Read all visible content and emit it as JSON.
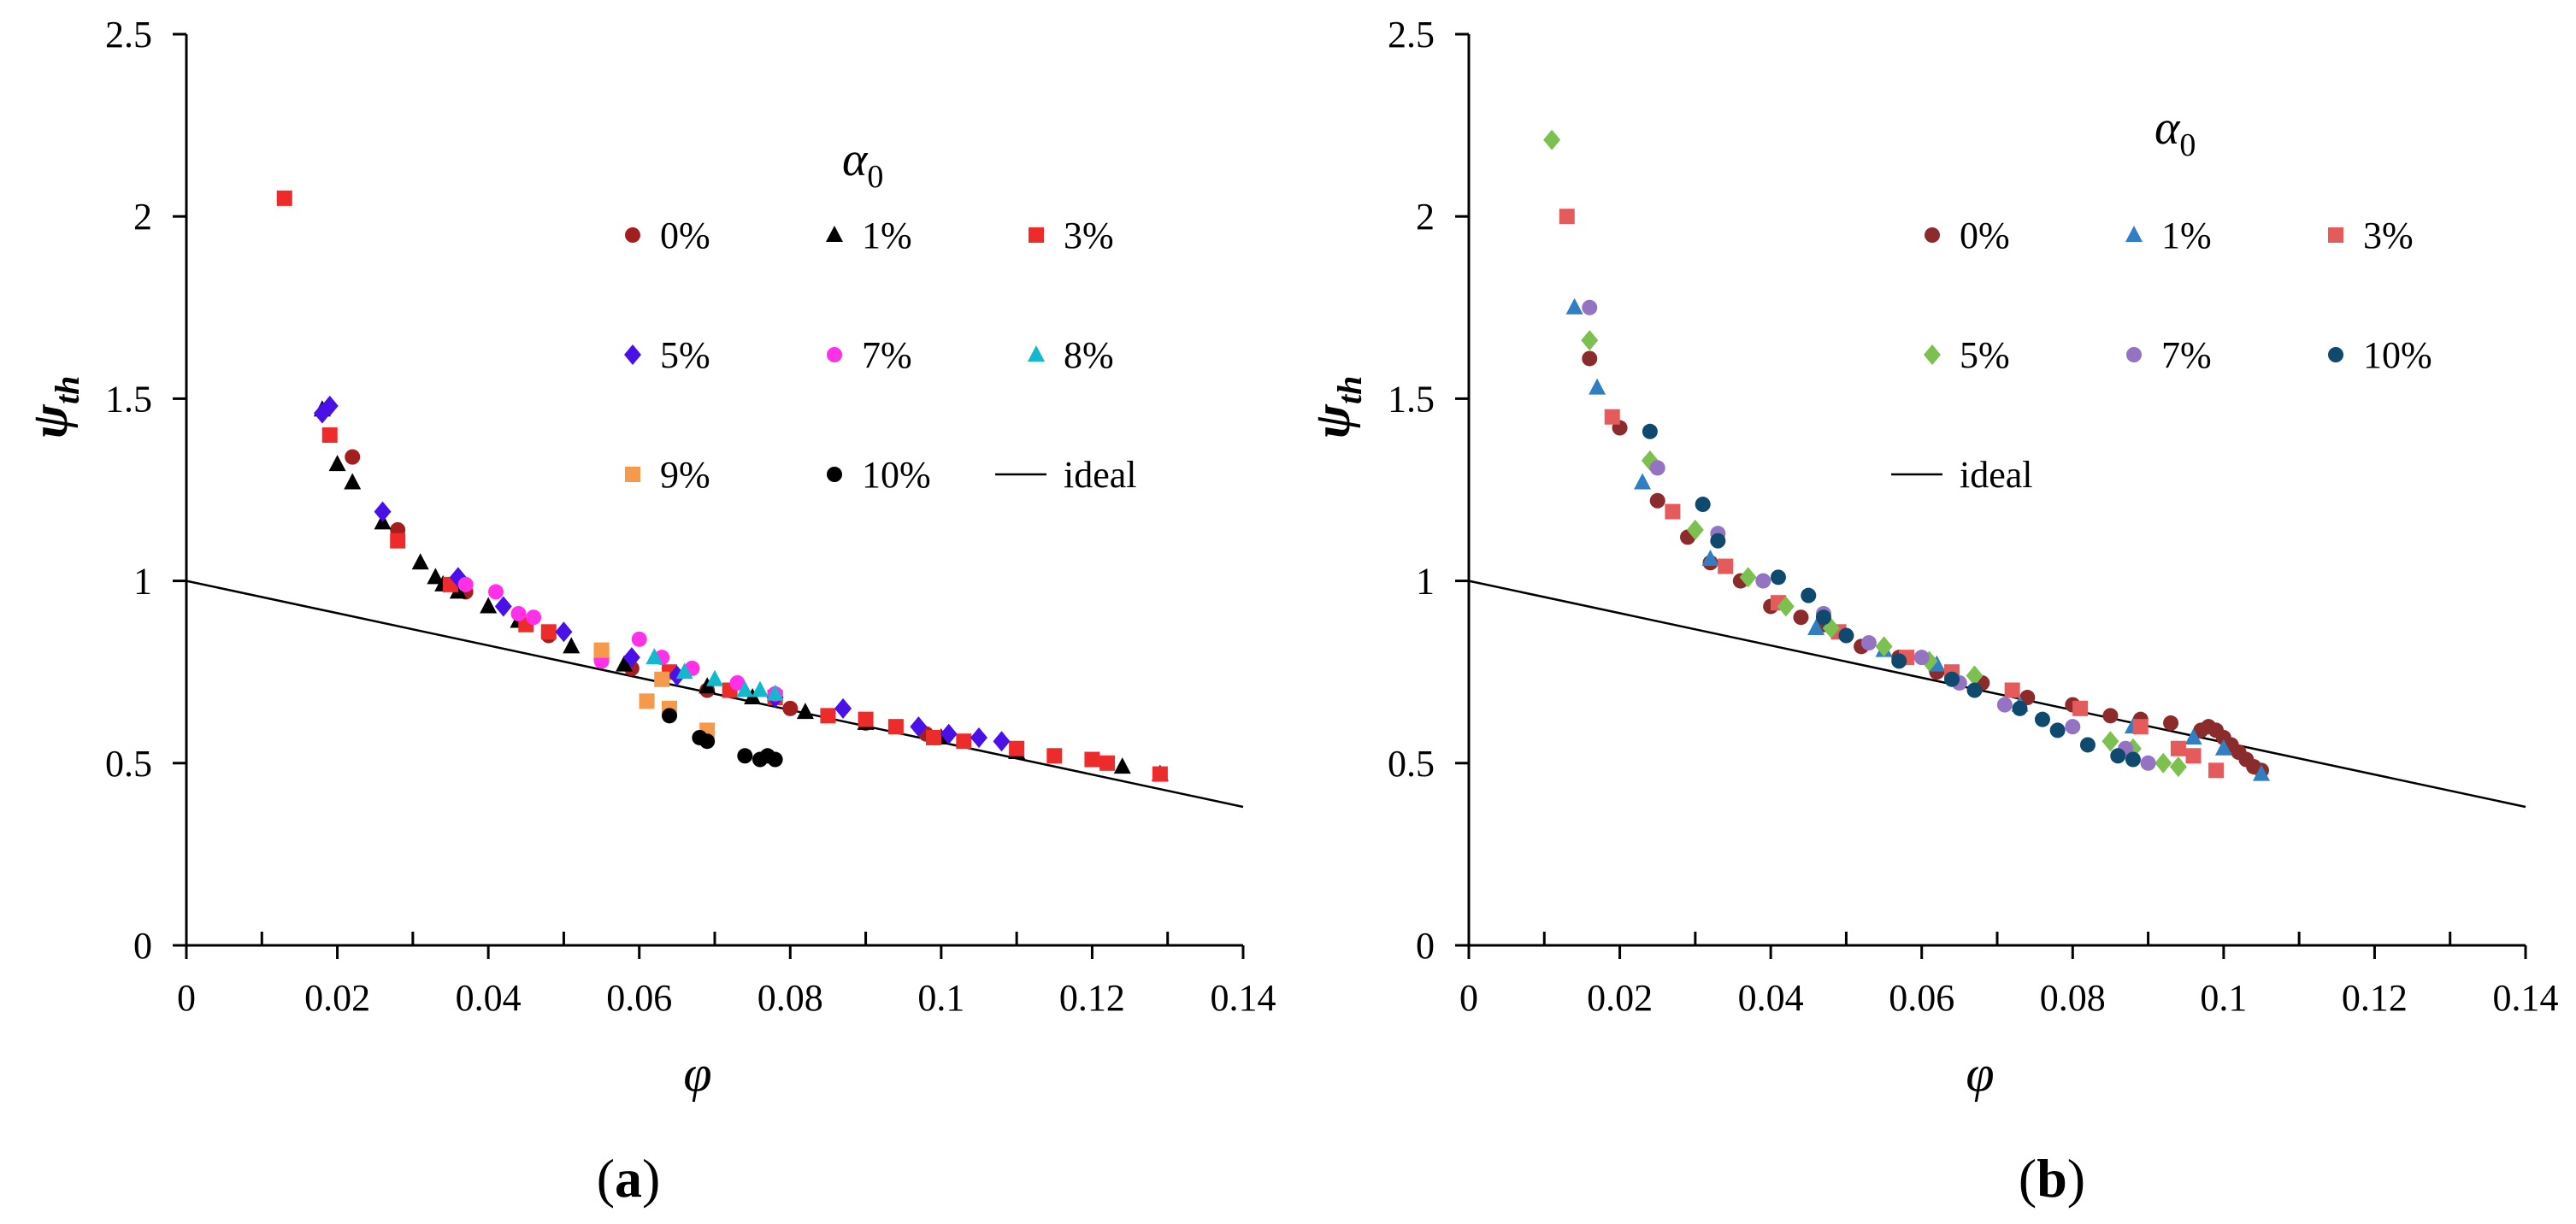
{
  "colors": {
    "c0": "#a31f1f",
    "c1": "#000000",
    "c3": "#ee2b2b",
    "c5": "#4a10e8",
    "c7": "#ff30e8",
    "c8": "#14b8cc",
    "c9": "#f59a4a",
    "c10": "#000000",
    "b0": "#8b2b2b",
    "b1": "#2f7fc2",
    "b3": "#e55a5a",
    "b5": "#7cc04f",
    "b7": "#9473c2",
    "b10": "#0f4a6e",
    "ideal": "#000000"
  },
  "chart_data": [
    {
      "type": "scatter",
      "panel_label": "a",
      "title": "",
      "xlabel": "φ",
      "ylabel": "ψ",
      "ylabel_sub": "th",
      "xlim": [
        0,
        0.14
      ],
      "ylim": [
        0,
        2.5
      ],
      "xticks": [
        0,
        0.02,
        0.04,
        0.06,
        0.08,
        0.1,
        0.12,
        0.14
      ],
      "xtick_labels": [
        "0",
        "0.02",
        "0.04",
        "0.06",
        "0.08",
        "0.1",
        "0.12",
        "0.14"
      ],
      "yticks": [
        0,
        0.5,
        1,
        1.5,
        2,
        2.5
      ],
      "ytick_labels": [
        "0",
        "0.5",
        "1",
        "1.5",
        "2",
        "2.5"
      ],
      "legend_title": "α",
      "legend_title_sub": "0",
      "legend_placement": "top-right",
      "ideal": {
        "name": "ideal",
        "points": [
          [
            0,
            1.0
          ],
          [
            0.14,
            0.38
          ]
        ]
      },
      "series": [
        {
          "name": "0%",
          "marker": "circle",
          "colorKey": "c0",
          "points": [
            [
              0.022,
              1.34
            ],
            [
              0.028,
              1.14
            ],
            [
              0.037,
              0.97
            ],
            [
              0.048,
              0.85
            ],
            [
              0.059,
              0.76
            ],
            [
              0.069,
              0.7
            ],
            [
              0.08,
              0.65
            ],
            [
              0.09,
              0.61
            ],
            [
              0.098,
              0.58
            ]
          ]
        },
        {
          "name": "1%",
          "marker": "triangle",
          "colorKey": "c1",
          "points": [
            [
              0.018,
              1.47
            ],
            [
              0.02,
              1.32
            ],
            [
              0.022,
              1.27
            ],
            [
              0.026,
              1.16
            ],
            [
              0.031,
              1.05
            ],
            [
              0.033,
              1.01
            ],
            [
              0.034,
              0.99
            ],
            [
              0.036,
              0.97
            ],
            [
              0.04,
              0.93
            ],
            [
              0.044,
              0.89
            ],
            [
              0.051,
              0.82
            ],
            [
              0.058,
              0.77
            ],
            [
              0.069,
              0.71
            ],
            [
              0.075,
              0.68
            ],
            [
              0.082,
              0.64
            ],
            [
              0.09,
              0.61
            ],
            [
              0.1,
              0.57
            ],
            [
              0.11,
              0.53
            ],
            [
              0.124,
              0.49
            ],
            [
              0.129,
              0.47
            ]
          ]
        },
        {
          "name": "3%",
          "marker": "square",
          "colorKey": "c3",
          "points": [
            [
              0.013,
              2.05
            ],
            [
              0.019,
              1.4
            ],
            [
              0.028,
              1.11
            ],
            [
              0.035,
              0.99
            ],
            [
              0.045,
              0.88
            ],
            [
              0.048,
              0.86
            ],
            [
              0.055,
              0.8
            ],
            [
              0.064,
              0.75
            ],
            [
              0.072,
              0.7
            ],
            [
              0.078,
              0.68
            ],
            [
              0.085,
              0.63
            ],
            [
              0.09,
              0.62
            ],
            [
              0.094,
              0.6
            ],
            [
              0.099,
              0.57
            ],
            [
              0.103,
              0.56
            ],
            [
              0.11,
              0.54
            ],
            [
              0.115,
              0.52
            ],
            [
              0.12,
              0.51
            ],
            [
              0.122,
              0.5
            ],
            [
              0.129,
              0.47
            ]
          ]
        },
        {
          "name": "5%",
          "marker": "diamond",
          "colorKey": "c5",
          "points": [
            [
              0.018,
              1.46
            ],
            [
              0.019,
              1.48
            ],
            [
              0.026,
              1.19
            ],
            [
              0.036,
              1.01
            ],
            [
              0.042,
              0.93
            ],
            [
              0.05,
              0.86
            ],
            [
              0.059,
              0.79
            ],
            [
              0.065,
              0.74
            ],
            [
              0.078,
              0.68
            ],
            [
              0.087,
              0.65
            ],
            [
              0.097,
              0.6
            ],
            [
              0.101,
              0.58
            ],
            [
              0.105,
              0.57
            ],
            [
              0.108,
              0.56
            ]
          ]
        },
        {
          "name": "7%",
          "marker": "circle",
          "colorKey": "c7",
          "points": [
            [
              0.037,
              0.99
            ],
            [
              0.041,
              0.97
            ],
            [
              0.044,
              0.91
            ],
            [
              0.046,
              0.9
            ],
            [
              0.055,
              0.78
            ],
            [
              0.06,
              0.84
            ],
            [
              0.063,
              0.79
            ],
            [
              0.067,
              0.76
            ],
            [
              0.073,
              0.72
            ],
            [
              0.078,
              0.69
            ]
          ]
        },
        {
          "name": "8%",
          "marker": "triangle",
          "colorKey": "c8",
          "points": [
            [
              0.062,
              0.79
            ],
            [
              0.066,
              0.75
            ],
            [
              0.07,
              0.73
            ],
            [
              0.074,
              0.7
            ],
            [
              0.076,
              0.7
            ],
            [
              0.078,
              0.69
            ]
          ]
        },
        {
          "name": "9%",
          "marker": "square",
          "colorKey": "c9",
          "points": [
            [
              0.055,
              0.81
            ],
            [
              0.061,
              0.67
            ],
            [
              0.063,
              0.73
            ],
            [
              0.064,
              0.65
            ],
            [
              0.069,
              0.59
            ]
          ]
        },
        {
          "name": "10%",
          "marker": "circle",
          "colorKey": "c10",
          "points": [
            [
              0.064,
              0.63
            ],
            [
              0.068,
              0.57
            ],
            [
              0.069,
              0.56
            ],
            [
              0.074,
              0.52
            ],
            [
              0.076,
              0.51
            ],
            [
              0.077,
              0.52
            ],
            [
              0.078,
              0.51
            ]
          ]
        }
      ]
    },
    {
      "type": "scatter",
      "panel_label": "b",
      "title": "",
      "xlabel": "φ",
      "ylabel": "ψ",
      "ylabel_sub": "th",
      "xlim": [
        0,
        0.14
      ],
      "ylim": [
        0,
        2.5
      ],
      "xticks": [
        0,
        0.02,
        0.04,
        0.06,
        0.08,
        0.1,
        0.12,
        0.14
      ],
      "xtick_labels": [
        "0",
        "0.02",
        "0.04",
        "0.06",
        "0.08",
        "0.1",
        "0.12",
        "0.14"
      ],
      "yticks": [
        0,
        0.5,
        1,
        1.5,
        2,
        2.5
      ],
      "ytick_labels": [
        "0",
        "0.5",
        "1",
        "1.5",
        "2",
        "2.5"
      ],
      "legend_title": "α",
      "legend_title_sub": "0",
      "legend_placement": "top-right",
      "ideal": {
        "name": "ideal",
        "points": [
          [
            0,
            1.0
          ],
          [
            0.14,
            0.38
          ]
        ]
      },
      "series": [
        {
          "name": "0%",
          "marker": "circle",
          "colorKey": "b0",
          "points": [
            [
              0.016,
              1.61
            ],
            [
              0.02,
              1.42
            ],
            [
              0.025,
              1.22
            ],
            [
              0.029,
              1.12
            ],
            [
              0.032,
              1.05
            ],
            [
              0.036,
              1.0
            ],
            [
              0.04,
              0.93
            ],
            [
              0.044,
              0.9
            ],
            [
              0.047,
              0.88
            ],
            [
              0.052,
              0.82
            ],
            [
              0.057,
              0.79
            ],
            [
              0.062,
              0.75
            ],
            [
              0.068,
              0.72
            ],
            [
              0.074,
              0.68
            ],
            [
              0.08,
              0.66
            ],
            [
              0.085,
              0.63
            ],
            [
              0.089,
              0.62
            ],
            [
              0.093,
              0.61
            ],
            [
              0.097,
              0.59
            ],
            [
              0.098,
              0.6
            ],
            [
              0.099,
              0.59
            ],
            [
              0.1,
              0.57
            ],
            [
              0.101,
              0.55
            ],
            [
              0.102,
              0.53
            ],
            [
              0.103,
              0.51
            ],
            [
              0.104,
              0.49
            ],
            [
              0.105,
              0.48
            ]
          ]
        },
        {
          "name": "1%",
          "marker": "triangle",
          "colorKey": "b1",
          "points": [
            [
              0.014,
              1.75
            ],
            [
              0.017,
              1.53
            ],
            [
              0.023,
              1.27
            ],
            [
              0.032,
              1.06
            ],
            [
              0.046,
              0.87
            ],
            [
              0.055,
              0.81
            ],
            [
              0.062,
              0.77
            ],
            [
              0.073,
              0.66
            ],
            [
              0.088,
              0.6
            ],
            [
              0.096,
              0.57
            ],
            [
              0.1,
              0.54
            ],
            [
              0.105,
              0.47
            ]
          ]
        },
        {
          "name": "3%",
          "marker": "square",
          "colorKey": "b3",
          "points": [
            [
              0.013,
              2.0
            ],
            [
              0.019,
              1.45
            ],
            [
              0.027,
              1.19
            ],
            [
              0.034,
              1.04
            ],
            [
              0.041,
              0.94
            ],
            [
              0.049,
              0.86
            ],
            [
              0.058,
              0.79
            ],
            [
              0.064,
              0.75
            ],
            [
              0.072,
              0.7
            ],
            [
              0.081,
              0.65
            ],
            [
              0.089,
              0.6
            ],
            [
              0.094,
              0.54
            ],
            [
              0.096,
              0.52
            ],
            [
              0.099,
              0.48
            ]
          ]
        },
        {
          "name": "5%",
          "marker": "diamond",
          "colorKey": "b5",
          "points": [
            [
              0.011,
              2.21
            ],
            [
              0.016,
              1.66
            ],
            [
              0.024,
              1.33
            ],
            [
              0.03,
              1.14
            ],
            [
              0.037,
              1.01
            ],
            [
              0.042,
              0.93
            ],
            [
              0.048,
              0.87
            ],
            [
              0.055,
              0.82
            ],
            [
              0.061,
              0.78
            ],
            [
              0.067,
              0.74
            ],
            [
              0.085,
              0.56
            ],
            [
              0.088,
              0.54
            ],
            [
              0.092,
              0.5
            ],
            [
              0.094,
              0.49
            ]
          ]
        },
        {
          "name": "7%",
          "marker": "circle",
          "colorKey": "b7",
          "points": [
            [
              0.016,
              1.75
            ],
            [
              0.025,
              1.31
            ],
            [
              0.033,
              1.13
            ],
            [
              0.039,
              1.0
            ],
            [
              0.047,
              0.91
            ],
            [
              0.053,
              0.83
            ],
            [
              0.06,
              0.79
            ],
            [
              0.065,
              0.72
            ],
            [
              0.071,
              0.66
            ],
            [
              0.08,
              0.6
            ],
            [
              0.087,
              0.54
            ],
            [
              0.09,
              0.5
            ]
          ]
        },
        {
          "name": "10%",
          "marker": "circle",
          "colorKey": "b10",
          "points": [
            [
              0.024,
              1.41
            ],
            [
              0.031,
              1.21
            ],
            [
              0.033,
              1.11
            ],
            [
              0.041,
              1.01
            ],
            [
              0.045,
              0.96
            ],
            [
              0.047,
              0.9
            ],
            [
              0.05,
              0.85
            ],
            [
              0.057,
              0.78
            ],
            [
              0.064,
              0.73
            ],
            [
              0.067,
              0.7
            ],
            [
              0.073,
              0.65
            ],
            [
              0.076,
              0.62
            ],
            [
              0.078,
              0.59
            ],
            [
              0.082,
              0.55
            ],
            [
              0.086,
              0.52
            ],
            [
              0.088,
              0.51
            ]
          ]
        }
      ]
    }
  ]
}
